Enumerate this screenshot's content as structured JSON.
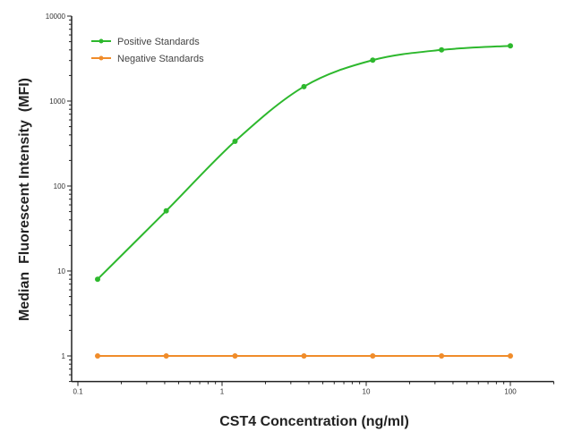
{
  "chart_data": {
    "type": "line",
    "title": "",
    "xlabel": "CST4 Concentration (ng/ml)",
    "ylabel": "Median  Fluorescent Intensity  (MFI)",
    "xscale": "log",
    "yscale": "log",
    "xlim": [
      0.1,
      200
    ],
    "ylim": [
      0.5,
      10000
    ],
    "xticks": [
      0.1,
      1,
      10,
      100
    ],
    "xtick_labels": [
      "0.1",
      "1",
      "10",
      "100"
    ],
    "yticks": [
      1,
      10,
      100,
      1000,
      10000
    ],
    "ytick_labels": [
      "1",
      "10",
      "100",
      "1000",
      "10000"
    ],
    "grid": false,
    "legend_position": "top-left",
    "x": [
      0.137,
      0.41,
      1.23,
      3.7,
      11.1,
      33.3,
      100
    ],
    "series": [
      {
        "name": "Positive Standards",
        "color": "#2db82d",
        "values": [
          8,
          51,
          336,
          1480,
          3030,
          4000,
          4470
        ]
      },
      {
        "name": "Negative Standards",
        "color": "#f08c2a",
        "values": [
          1,
          1,
          1,
          1,
          1,
          1,
          1
        ]
      }
    ]
  }
}
